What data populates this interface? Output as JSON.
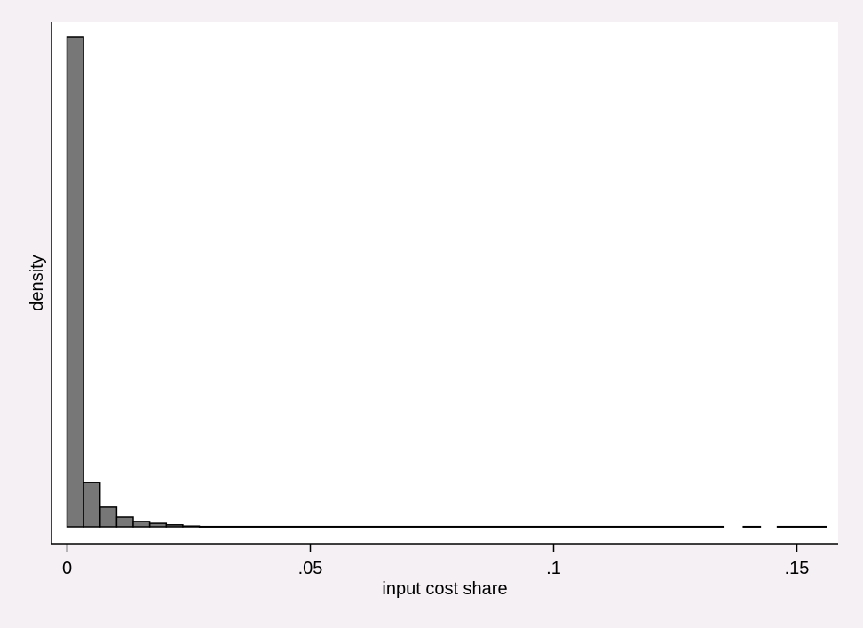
{
  "chart_data": {
    "type": "bar",
    "title": "",
    "xlabel": "input cost share",
    "ylabel": "density",
    "xlim": [
      -0.0035,
      0.158
    ],
    "ylim": [
      0,
      1
    ],
    "xticks": [
      {
        "value": 0,
        "label": "0"
      },
      {
        "value": 0.05,
        "label": ".05"
      },
      {
        "value": 0.1,
        "label": ".1"
      },
      {
        "value": 0.15,
        "label": ".15"
      }
    ],
    "yticks_shown": false,
    "grid": false,
    "bin_width": 0.0034,
    "bins": [
      {
        "x0": 0.0,
        "x1": 0.0034,
        "density": 1.0
      },
      {
        "x0": 0.0034,
        "x1": 0.0068,
        "density": 0.091
      },
      {
        "x0": 0.0068,
        "x1": 0.0102,
        "density": 0.04
      },
      {
        "x0": 0.0102,
        "x1": 0.0136,
        "density": 0.02
      },
      {
        "x0": 0.0136,
        "x1": 0.017,
        "density": 0.011
      },
      {
        "x0": 0.017,
        "x1": 0.0204,
        "density": 0.007
      },
      {
        "x0": 0.0204,
        "x1": 0.0238,
        "density": 0.004
      },
      {
        "x0": 0.0238,
        "x1": 0.0272,
        "density": 0.0015
      },
      {
        "x0": 0.0272,
        "x1": 0.135,
        "density": 0.0005
      },
      {
        "x0": 0.139,
        "x1": 0.1425,
        "density": 0.0005
      },
      {
        "x0": 0.146,
        "x1": 0.156,
        "density": 0.0005
      }
    ],
    "colors": {
      "bar_fill": "#777777",
      "bar_stroke": "#000000",
      "plot_bg": "#ffffff",
      "figure_bg": "#f4f0f4"
    }
  }
}
